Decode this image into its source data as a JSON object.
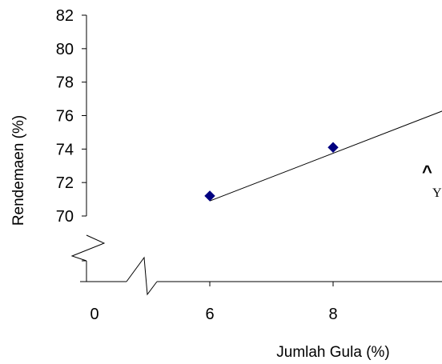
{
  "chart_data": {
    "type": "scatter",
    "xlabel": "Jumlah Gula (%)",
    "ylabel": "Rendemaen (%)",
    "x_ticks": [
      "0",
      "6",
      "8"
    ],
    "y_ticks": [
      "82",
      "80",
      "78",
      "76",
      "74",
      "72",
      "70"
    ],
    "ylim": [
      70,
      82
    ],
    "x_axis_break": true,
    "y_axis_break": true,
    "marker_color": "#000080",
    "series": [
      {
        "x": [
          6,
          8
        ],
        "y": [
          71.2,
          74.1
        ]
      }
    ],
    "trendline": {
      "x": [
        6,
        10
      ],
      "y": [
        70.9,
        76.6
      ]
    },
    "equation": {
      "hat": "^",
      "text": "Y"
    }
  }
}
